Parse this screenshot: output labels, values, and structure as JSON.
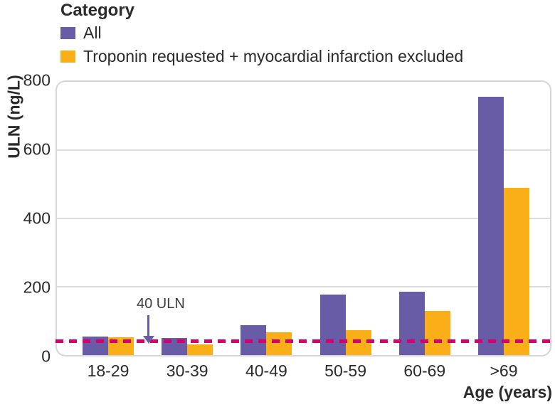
{
  "legend": {
    "title": "Category",
    "items": [
      {
        "label": "All",
        "color": "#695ca7"
      },
      {
        "label": "Troponin requested + myocardial infarction excluded",
        "color": "#faae18"
      }
    ]
  },
  "chart_data": {
    "type": "bar",
    "categories": [
      "18-29",
      "30-39",
      "40-49",
      "50-59",
      "60-69",
      ">69"
    ],
    "series": [
      {
        "name": "All",
        "color": "#695ca7",
        "values": [
          55,
          50,
          88,
          178,
          186,
          757
        ]
      },
      {
        "name": "Troponin requested + myocardial infarction excluded",
        "color": "#faae18",
        "values": [
          53,
          32,
          66,
          72,
          130,
          490
        ]
      }
    ],
    "title": "",
    "xlabel": "Age (years)",
    "ylabel": "ULN (ng/L)",
    "ylim": [
      0,
      800
    ],
    "yticks": [
      0,
      200,
      400,
      600,
      800
    ],
    "gridline_values": [
      200,
      400,
      600
    ],
    "grid": true,
    "legend_position": "top-left",
    "reference_line": {
      "value": 40,
      "label": "40 ULN",
      "color": "#d4006d",
      "arrow_color": "#695ca7"
    }
  },
  "style": {
    "grid_color": "#dcdcdc",
    "border_color": "#d6d6d6",
    "text_color": "#2b2b2b",
    "background": "#ffffff"
  }
}
